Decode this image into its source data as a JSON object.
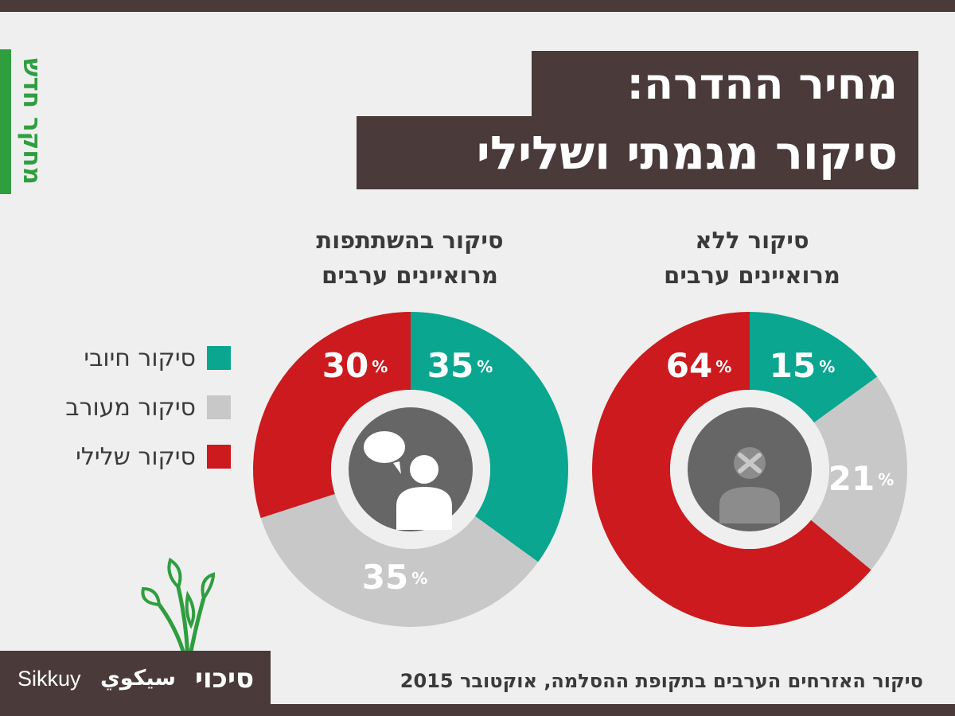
{
  "header": {
    "title_line1": "מחיר ההדרה:",
    "title_line2": "סיקור מגמתי ושלילי",
    "side_tag": "מחקר חדש"
  },
  "legend": {
    "items": [
      {
        "label": "סיקור חיובי",
        "color": "#0aa68f"
      },
      {
        "label": "סיקור מעורב",
        "color": "#c8c8c8"
      },
      {
        "label": "סיקור שלילי",
        "color": "#cc1a1e"
      }
    ]
  },
  "colors": {
    "positive": "#0aa68f",
    "mixed": "#c8c8c8",
    "negative": "#cc1a1e",
    "dark": "#4a3a3a",
    "green": "#2e9e3e",
    "icon_bg": "#666666"
  },
  "chart_data": [
    {
      "type": "pie",
      "title_line1": "סיקור בהשתתפות",
      "title_line2": "מרואיינים ערבים",
      "icon": "speech-bubbles-person-icon",
      "slices": [
        {
          "label": "סיקור חיובי",
          "value": 35,
          "display": "35",
          "color": "#0aa68f"
        },
        {
          "label": "סיקור מעורב",
          "value": 35,
          "display": "35",
          "color": "#c8c8c8"
        },
        {
          "label": "סיקור שלילי",
          "value": 30,
          "display": "30",
          "color": "#cc1a1e"
        }
      ],
      "unit": "%"
    },
    {
      "type": "pie",
      "title_line1": "סיקור ללא",
      "title_line2": "מרואיינים ערבים",
      "icon": "silenced-person-icon",
      "slices": [
        {
          "label": "סיקור חיובי",
          "value": 15,
          "display": "15",
          "color": "#0aa68f"
        },
        {
          "label": "סיקור מעורב",
          "value": 21,
          "display": "21",
          "color": "#c8c8c8"
        },
        {
          "label": "סיקור שלילי",
          "value": 64,
          "display": "64",
          "color": "#cc1a1e"
        }
      ],
      "unit": "%"
    }
  ],
  "footer": {
    "text": "סיקור האזרחים הערבים בתקופת ההסלמה, אוקטובר 2015",
    "logo_hebrew": "סיכוי",
    "logo_arabic": "سيكوي",
    "logo_latin": "Sikkuy"
  }
}
